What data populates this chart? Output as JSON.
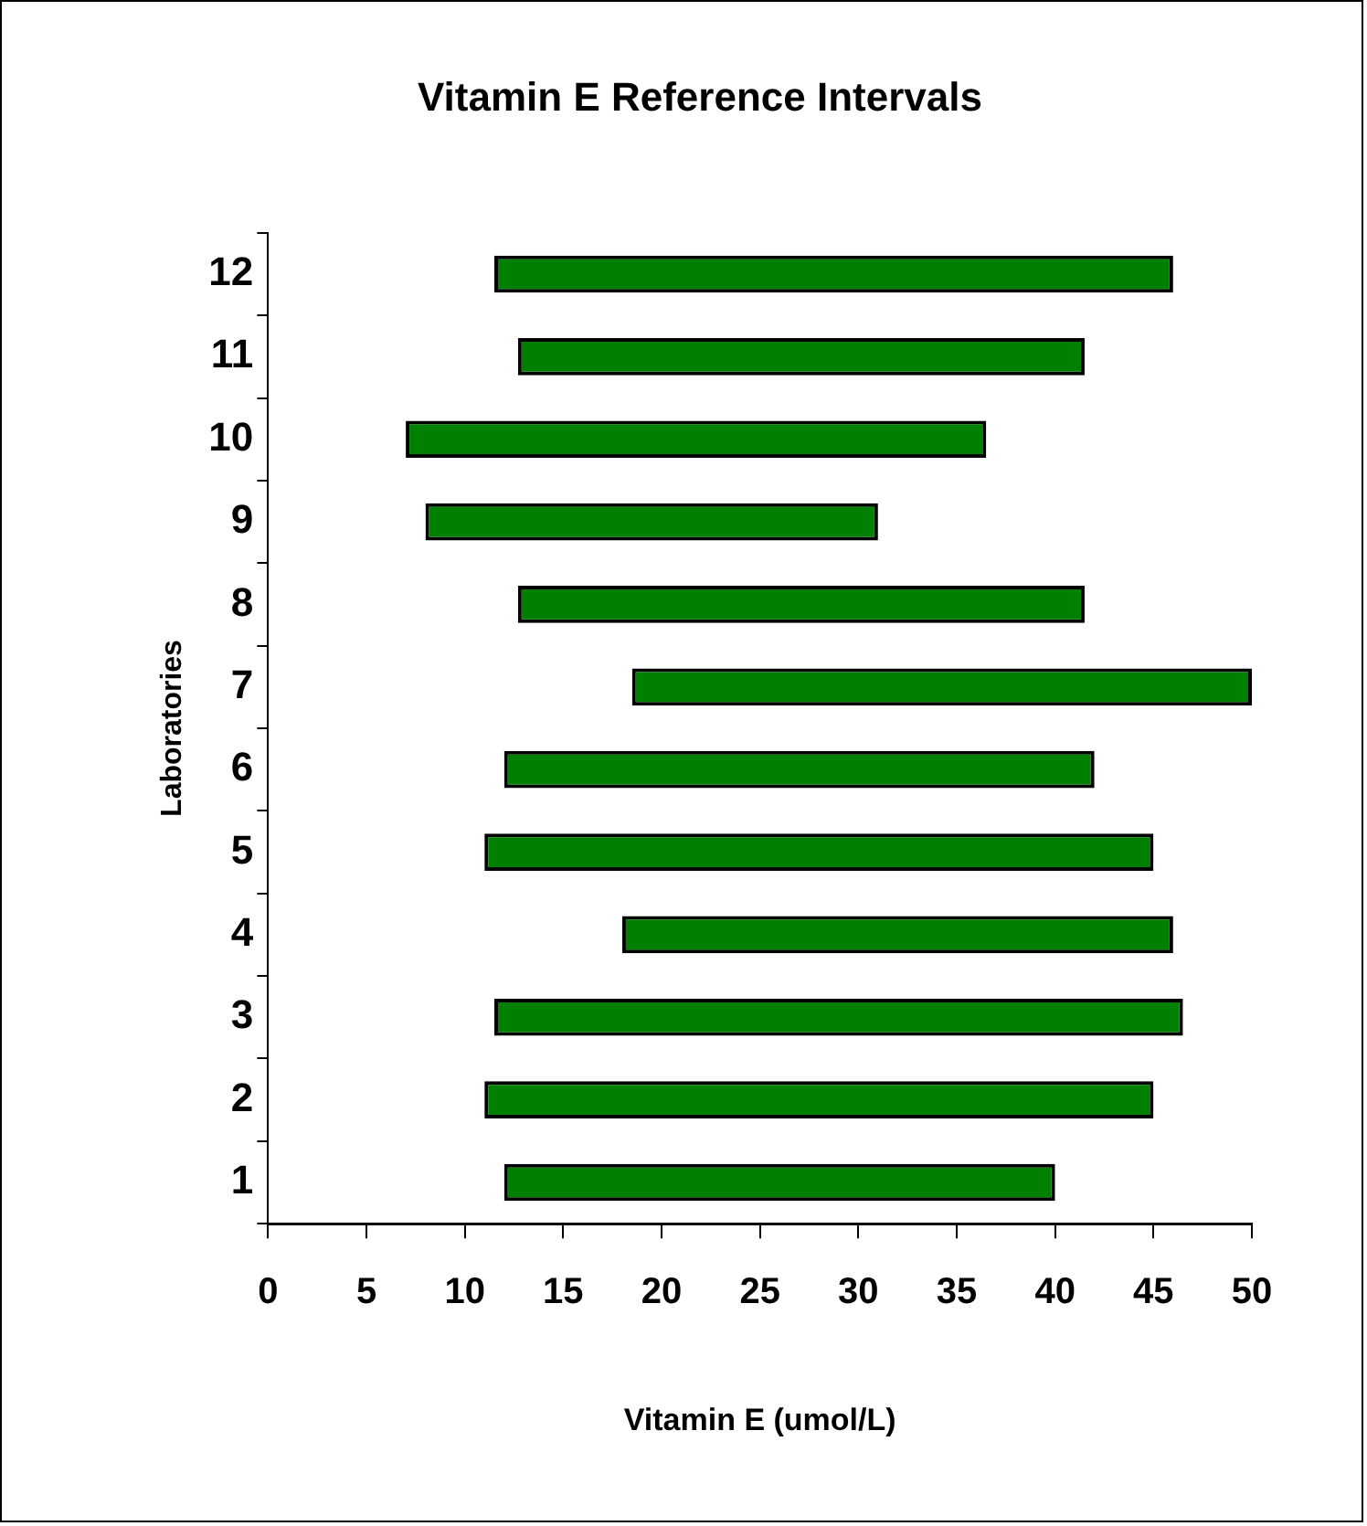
{
  "chart_data": {
    "type": "bar",
    "orientation": "horizontal",
    "title": "Vitamin E Reference Intervals",
    "xlabel": "Vitamin E (umol/L)",
    "ylabel": "Laboratories",
    "categories": [
      "12",
      "11",
      "10",
      "9",
      "8",
      "7",
      "6",
      "5",
      "4",
      "3",
      "2",
      "1"
    ],
    "base": [
      11.5,
      12.7,
      7,
      8,
      12.7,
      18.5,
      12,
      11,
      18,
      11.5,
      11,
      12
    ],
    "values": [
      34.5,
      28.8,
      29.5,
      23,
      28.8,
      31.5,
      30,
      34,
      28,
      35,
      34,
      28
    ],
    "color": "#008000",
    "xlim": [
      0,
      50
    ],
    "xticks": [
      0,
      5,
      10,
      15,
      20,
      25,
      30,
      35,
      40,
      45,
      50
    ],
    "grid": false,
    "legend": false
  }
}
